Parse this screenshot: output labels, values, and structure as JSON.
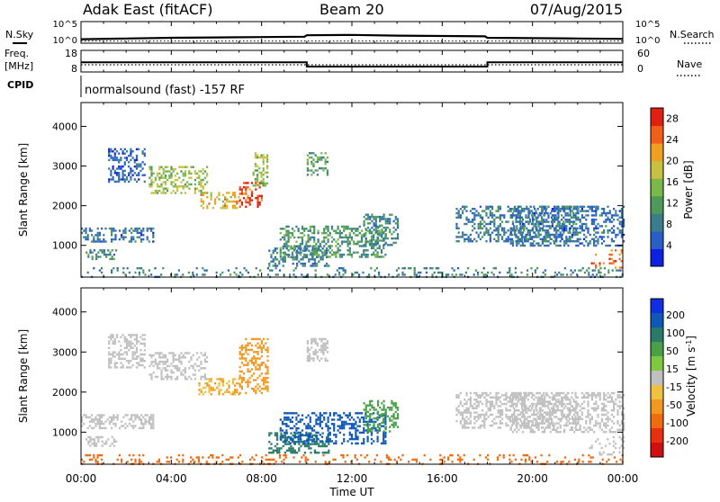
{
  "header": {
    "station": "Adak East (fitACF)",
    "beam": "Beam 20",
    "date": "07/Aug/2015"
  },
  "side_labels": {
    "nsky": "N.Sky",
    "nsearch": "N.Search",
    "freq_line1": "Freq.",
    "freq_line2": "[MHz]",
    "nave": "Nave",
    "cpid": "CPID",
    "cpid_text": "normalsound (fast) -157 RF"
  },
  "colors": {
    "power_scale": [
      "#1020e0",
      "#2860c8",
      "#3a7e8c",
      "#4f9a5a",
      "#7ab84a",
      "#c8c040",
      "#f0a020",
      "#f06018",
      "#e02010"
    ],
    "velocity_scale": [
      "#1030e0",
      "#1058b8",
      "#2a7a6a",
      "#4aa048",
      "#80c840",
      "#c0c0c0",
      "#f0c040",
      "#f09820",
      "#f06a10",
      "#e83010",
      "#d01010"
    ]
  },
  "chart_data": [
    {
      "type": "line",
      "name": "noise",
      "ylabel": "N.Sky",
      "y2label": "N.Search",
      "y_tick_labels": [
        "10^5",
        "10^0"
      ],
      "y2_tick_labels": [
        "10^5",
        "10^0"
      ],
      "series": [
        {
          "name": "N.Sky",
          "x_hours": [
            0,
            2,
            4,
            6,
            8,
            9.9,
            10,
            12,
            14,
            16,
            17.9,
            18,
            20,
            22,
            24
          ],
          "values_log10": [
            0.6,
            0.8,
            1.0,
            1.1,
            1.2,
            1.3,
            1.7,
            1.8,
            1.6,
            1.5,
            1.4,
            1.0,
            0.9,
            0.8,
            0.7
          ]
        },
        {
          "name": "N.Search",
          "x_hours": [
            0,
            24
          ],
          "values_log10": [
            0.1,
            0.1
          ]
        }
      ]
    },
    {
      "type": "line",
      "name": "frequency",
      "ylabel": "Freq. [MHz]",
      "y2label": "Nave",
      "y_tick_labels": [
        "18",
        "8"
      ],
      "y2_tick_labels": [
        "60",
        "0"
      ],
      "ylim": [
        8,
        18
      ],
      "y2lim": [
        0,
        60
      ],
      "series": [
        {
          "name": "Freq",
          "x_hours": [
            0,
            10,
            10,
            18,
            18,
            24
          ],
          "values": [
            12.5,
            12.5,
            10.5,
            10.5,
            12.5,
            12.5
          ]
        },
        {
          "name": "Nave",
          "x_hours": [
            0,
            10,
            10,
            18,
            18,
            24
          ],
          "values": [
            25,
            25,
            25,
            25,
            25,
            25
          ]
        }
      ]
    },
    {
      "type": "heatmap",
      "name": "power",
      "ylabel": "Slant Range [km]",
      "y_ticks": [
        1000,
        2000,
        3000,
        4000
      ],
      "ylim": [
        200,
        4600
      ],
      "xlim": [
        0,
        24
      ],
      "colorbar_label": "Power [dB]",
      "colorbar_ticks": [
        4,
        8,
        12,
        16,
        20,
        24,
        28
      ],
      "colorbar_range": [
        0,
        30
      ],
      "echo_regions": [
        {
          "t0": 0.2,
          "t1": 1.6,
          "r0": 650,
          "r1": 900,
          "value": 10
        },
        {
          "t0": 0,
          "t1": 3.2,
          "r0": 1100,
          "r1": 1450,
          "value": 7
        },
        {
          "t0": 1.2,
          "t1": 2.8,
          "r0": 2600,
          "r1": 3450,
          "value": 6
        },
        {
          "t0": 3.0,
          "t1": 5.6,
          "r0": 2300,
          "r1": 3000,
          "value": 16
        },
        {
          "t0": 5.2,
          "t1": 7.0,
          "r0": 1950,
          "r1": 2350,
          "value": 20
        },
        {
          "t0": 7.0,
          "t1": 8.0,
          "r0": 2000,
          "r1": 2600,
          "value": 27
        },
        {
          "t0": 7.6,
          "t1": 8.3,
          "r0": 2500,
          "r1": 3350,
          "value": 16
        },
        {
          "t0": 8.3,
          "t1": 11.0,
          "r0": 500,
          "r1": 1000,
          "value": 8
        },
        {
          "t0": 8.8,
          "t1": 13.5,
          "r0": 700,
          "r1": 1500,
          "value": 11
        },
        {
          "t0": 10.0,
          "t1": 10.9,
          "r0": 2800,
          "r1": 3350,
          "value": 12
        },
        {
          "t0": 12.5,
          "t1": 14.0,
          "r0": 1000,
          "r1": 1800,
          "value": 9
        },
        {
          "t0": 16.6,
          "t1": 22.0,
          "r0": 1100,
          "r1": 2000,
          "value": 8
        },
        {
          "t0": 19.0,
          "t1": 24.0,
          "r0": 1000,
          "r1": 2000,
          "value": 7
        },
        {
          "t0": 22.5,
          "t1": 24.0,
          "r0": 450,
          "r1": 900,
          "value": 24
        },
        {
          "t0": 0,
          "t1": 24,
          "r0": 200,
          "r1": 450,
          "value": 9
        }
      ]
    },
    {
      "type": "heatmap",
      "name": "velocity",
      "ylabel": "Slant Range [km]",
      "xlabel": "Time UT",
      "y_ticks": [
        1000,
        2000,
        3000,
        4000
      ],
      "ylim": [
        200,
        4600
      ],
      "xlim": [
        0,
        24
      ],
      "x_tick_labels": [
        "00:00",
        "04:00",
        "08:00",
        "12:00",
        "16:00",
        "20:00",
        "00:00"
      ],
      "colorbar_label": "Velocity [m s^-1]",
      "colorbar_ticks": [
        "200",
        "100",
        "50",
        "15",
        "-15",
        "-50",
        "-100",
        "-200"
      ],
      "echo_regions": [
        {
          "t0": 0.2,
          "t1": 1.6,
          "r0": 650,
          "r1": 900,
          "value": 0
        },
        {
          "t0": 0,
          "t1": 3.2,
          "r0": 1100,
          "r1": 1450,
          "value": 0
        },
        {
          "t0": 1.2,
          "t1": 2.8,
          "r0": 2600,
          "r1": 3450,
          "value": -10
        },
        {
          "t0": 3.0,
          "t1": 5.6,
          "r0": 2300,
          "r1": 3000,
          "value": 0
        },
        {
          "t0": 5.2,
          "t1": 7.0,
          "r0": 1950,
          "r1": 2350,
          "value": -30
        },
        {
          "t0": 7.0,
          "t1": 8.3,
          "r0": 2000,
          "r1": 3350,
          "value": -40
        },
        {
          "t0": 8.3,
          "t1": 11.0,
          "r0": 500,
          "r1": 1000,
          "value": 60
        },
        {
          "t0": 8.8,
          "t1": 13.5,
          "r0": 700,
          "r1": 1500,
          "value": 150
        },
        {
          "t0": 10.0,
          "t1": 10.9,
          "r0": 2800,
          "r1": 3350,
          "value": 0
        },
        {
          "t0": 12.5,
          "t1": 14.0,
          "r0": 1000,
          "r1": 1800,
          "value": 40
        },
        {
          "t0": 16.6,
          "t1": 22.0,
          "r0": 1100,
          "r1": 2000,
          "value": 0
        },
        {
          "t0": 19.0,
          "t1": 24.0,
          "r0": 1000,
          "r1": 2000,
          "value": 0
        },
        {
          "t0": 22.5,
          "t1": 24.0,
          "r0": 450,
          "r1": 900,
          "value": 0
        },
        {
          "t0": 0,
          "t1": 24,
          "r0": 200,
          "r1": 450,
          "value": -60
        }
      ]
    }
  ]
}
